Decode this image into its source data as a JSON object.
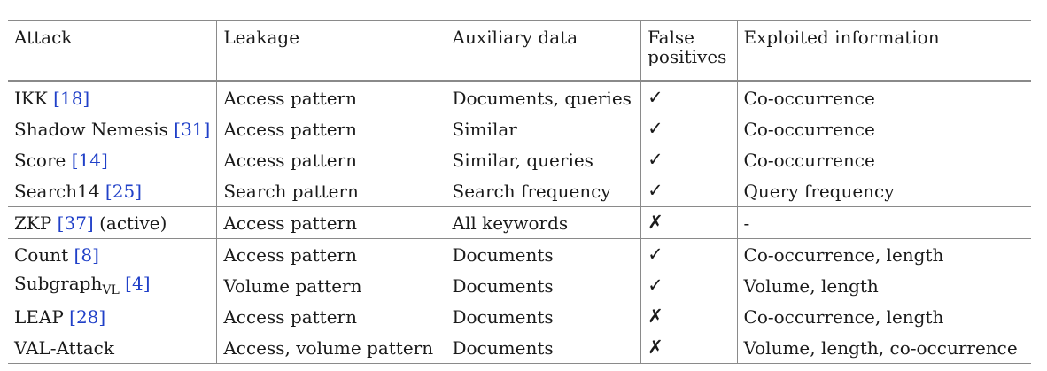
{
  "headers": {
    "attack": "Attack",
    "leakage": "Leakage",
    "auxiliary": "Auxiliary data",
    "false_positives_l1": "False",
    "false_positives_l2": "positives",
    "exploited": "Exploited information"
  },
  "rows": [
    {
      "name": "IKK",
      "sub": "",
      "ref": "18",
      "suffix": "",
      "leakage": "Access pattern",
      "auxiliary": "Documents, queries",
      "fp": "✓",
      "exploited": "Co-occurrence"
    },
    {
      "name": "Shadow Nemesis",
      "sub": "",
      "ref": "31",
      "suffix": "",
      "leakage": "Access pattern",
      "auxiliary": "Similar",
      "fp": "✓",
      "exploited": "Co-occurrence"
    },
    {
      "name": "Score",
      "sub": "",
      "ref": "14",
      "suffix": "",
      "leakage": "Access pattern",
      "auxiliary": "Similar, queries",
      "fp": "✓",
      "exploited": "Co-occurrence"
    },
    {
      "name": "Search14",
      "sub": "",
      "ref": "25",
      "suffix": "",
      "leakage": "Search pattern",
      "auxiliary": "Search frequency",
      "fp": "✓",
      "exploited": "Query frequency"
    },
    {
      "name": "ZKP",
      "sub": "",
      "ref": "37",
      "suffix": "(active)",
      "leakage": "Access pattern",
      "auxiliary": "All keywords",
      "fp": "✗",
      "exploited": "-"
    },
    {
      "name": "Count",
      "sub": "",
      "ref": "8",
      "suffix": "",
      "leakage": "Access pattern",
      "auxiliary": "Documents",
      "fp": "✓",
      "exploited": "Co-occurrence, length"
    },
    {
      "name": "Subgraph",
      "sub": "VL",
      "ref": "4",
      "suffix": "",
      "leakage": "Volume pattern",
      "auxiliary": "Documents",
      "fp": "✓",
      "exploited": "Volume, length"
    },
    {
      "name": "LEAP",
      "sub": "",
      "ref": "28",
      "suffix": "",
      "leakage": "Access pattern",
      "auxiliary": "Documents",
      "fp": "✗",
      "exploited": "Co-occurrence, length"
    },
    {
      "name": "VAL-Attack",
      "sub": "",
      "ref": "",
      "suffix": "",
      "leakage": "Access, volume pattern",
      "auxiliary": "Documents",
      "fp": "✗",
      "exploited": "Volume, length, co-occurrence"
    }
  ]
}
